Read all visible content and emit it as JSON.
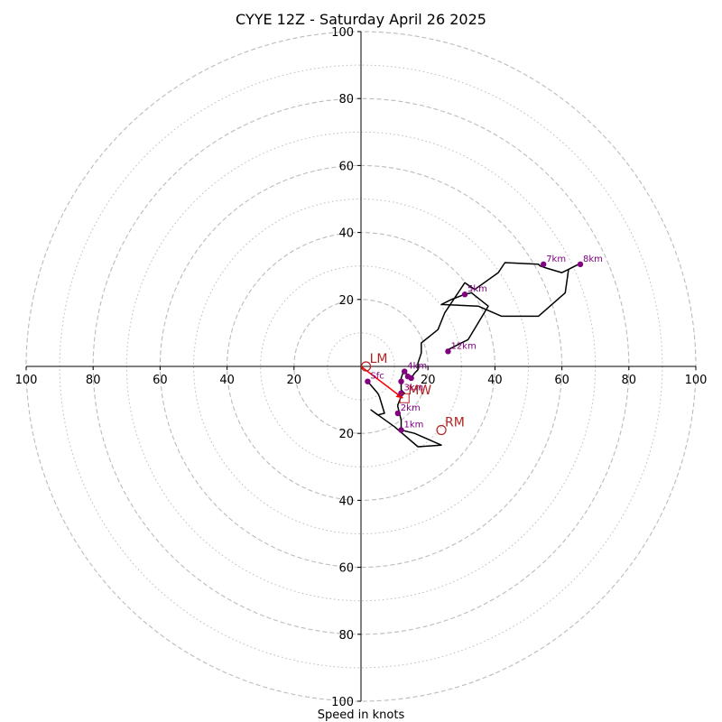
{
  "chart_data": {
    "type": "hodograph",
    "title": "CYYE 12Z - Saturday April 26 2025",
    "xlabel": "Speed in knots",
    "range": [
      -100,
      100
    ],
    "rings_major": [
      20,
      40,
      60,
      80,
      100
    ],
    "rings_minor": [
      10,
      30,
      50,
      70,
      90
    ],
    "tick_labels_x": [
      "100",
      "80",
      "60",
      "40",
      "20",
      "20",
      "40",
      "60",
      "80",
      "100"
    ],
    "tick_labels_y": [
      "100",
      "80",
      "60",
      "40",
      "20",
      "20",
      "40",
      "60",
      "80",
      "100"
    ],
    "tick_values_x": [
      -100,
      -80,
      -60,
      -40,
      -20,
      20,
      40,
      60,
      80,
      100
    ],
    "tick_values_y": [
      100,
      80,
      60,
      40,
      20,
      -20,
      -40,
      -60,
      -80,
      -100
    ],
    "hodograph_line": [
      [
        2,
        -4.5
      ],
      [
        5,
        -8
      ],
      [
        5.5,
        -9
      ],
      [
        7,
        -14
      ],
      [
        5,
        -14.5
      ],
      [
        3,
        -13
      ],
      [
        10,
        -18
      ],
      [
        17,
        -24
      ],
      [
        24,
        -23.5
      ],
      [
        16,
        -20
      ],
      [
        12,
        -19
      ],
      [
        12,
        -16
      ],
      [
        11,
        -12
      ],
      [
        11,
        -11.5
      ],
      [
        12,
        -9
      ],
      [
        13,
        -8
      ],
      [
        12,
        -7
      ],
      [
        12,
        -3.5
      ],
      [
        12.5,
        -2
      ],
      [
        13,
        -1
      ],
      [
        14,
        -3
      ],
      [
        15,
        -3.5
      ],
      [
        16,
        -2
      ],
      [
        17,
        -1
      ],
      [
        17,
        1
      ],
      [
        18,
        4
      ],
      [
        18,
        7
      ],
      [
        23,
        11
      ],
      [
        25,
        16
      ],
      [
        31,
        25
      ],
      [
        34,
        23
      ],
      [
        41,
        28
      ],
      [
        43,
        31
      ],
      [
        53,
        30.5
      ],
      [
        53.5,
        30
      ],
      [
        55,
        29.5
      ],
      [
        60,
        28
      ],
      [
        62,
        29
      ],
      [
        65,
        30.5
      ],
      [
        62,
        29
      ],
      [
        61,
        22
      ],
      [
        53,
        15
      ],
      [
        42,
        15
      ],
      [
        35,
        18
      ],
      [
        24,
        18.5
      ],
      [
        27,
        20
      ],
      [
        31,
        21.5
      ],
      [
        33,
        22
      ],
      [
        38,
        18
      ],
      [
        32,
        8
      ],
      [
        26,
        5
      ],
      [
        26,
        4
      ]
    ],
    "height_markers": [
      {
        "label": "Sfc",
        "u": 2,
        "v": -4.5
      },
      {
        "label": "1km",
        "u": 12,
        "v": -19
      },
      {
        "label": "2km",
        "u": 11,
        "v": -14
      },
      {
        "label": "3km",
        "u": 12,
        "v": -8
      },
      {
        "label": "",
        "u": 12,
        "v": -4.5
      },
      {
        "label": "",
        "u": 14,
        "v": -3
      },
      {
        "label": "",
        "u": 15,
        "v": -3.5
      },
      {
        "label": "4km",
        "u": 13,
        "v": -1.5
      },
      {
        "label": "5km",
        "u": 31,
        "v": 21.5
      },
      {
        "label": "7km",
        "u": 54.5,
        "v": 30.5
      },
      {
        "label": "8km",
        "u": 65.5,
        "v": 30.5
      },
      {
        "label": "12km",
        "u": 26,
        "v": 4.5
      }
    ],
    "storm_motions": [
      {
        "label": "LM",
        "u": 1.5,
        "v": 0
      },
      {
        "label": "RM",
        "u": 24,
        "v": -19
      },
      {
        "label": "MW",
        "u": 13,
        "v": -9.5
      }
    ],
    "mean_wind_vector": {
      "from": [
        0,
        0
      ],
      "to": [
        12.5,
        -9.5
      ]
    },
    "colors": {
      "hodograph": "#000000",
      "height_markers": "#800080",
      "storm_motion": "#b22222",
      "mean_wind": "#ff0000",
      "grid": "#bbbbbb",
      "axes": "#000000"
    }
  }
}
